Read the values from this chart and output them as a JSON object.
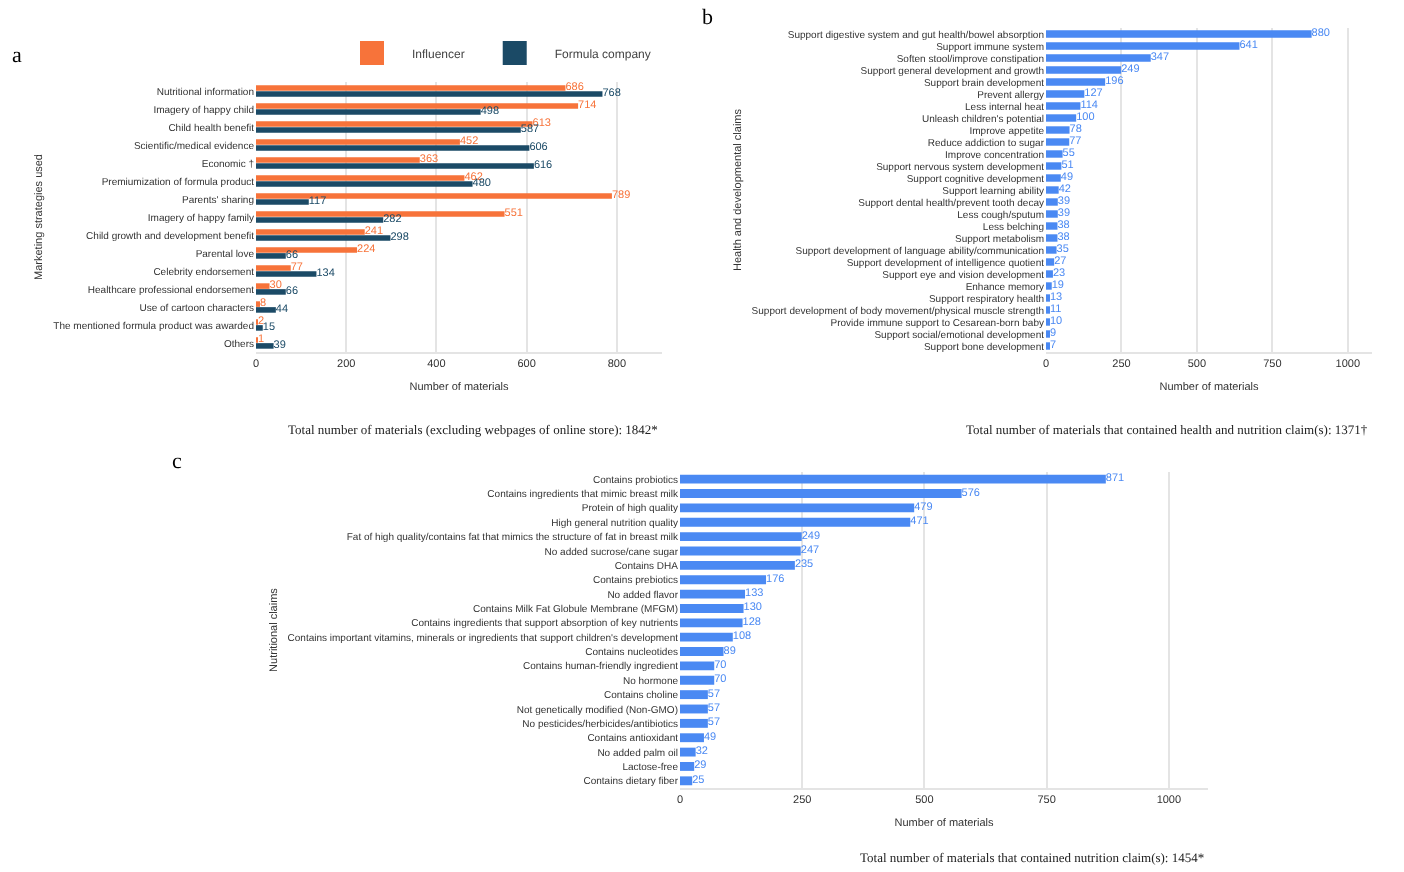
{
  "chart_data": [
    {
      "type": "bar",
      "orientation": "horizontal",
      "title": "a",
      "xlabel": "Number of materials",
      "ylabel": "Marketing strategies used",
      "legend": "top",
      "grid": "x",
      "data_labels": true,
      "categories": [
        "Nutritional information",
        "Imagery of happy child",
        "Child health benefit",
        "Scientific/medical evidence",
        "Economic †",
        "Premiumization of formula product",
        "Parents' sharing",
        "Imagery of happy family",
        "Child growth and development benefit",
        "Parental love",
        "Celebrity endorsement",
        "Healthcare professional endorsement",
        "Use of cartoon characters",
        "The mentioned formula product was awarded",
        "Others"
      ],
      "series": [
        {
          "name": "Influencer",
          "color": "#f7733a",
          "values": [
            686,
            714,
            613,
            452,
            363,
            462,
            789,
            551,
            241,
            224,
            77,
            30,
            8,
            2,
            1
          ]
        },
        {
          "name": "Formula company",
          "color": "#1b4a66",
          "values": [
            768,
            498,
            587,
            606,
            616,
            480,
            117,
            282,
            298,
            66,
            134,
            66,
            44,
            15,
            39
          ]
        }
      ],
      "xlim": [
        0,
        900
      ],
      "xticks": [
        0,
        200,
        400,
        600,
        800
      ],
      "annotations": [
        "Total number of materials (excluding webpages of online store): 1842*"
      ]
    },
    {
      "type": "bar",
      "orientation": "horizontal",
      "title": "b",
      "xlabel": "Number of materials",
      "ylabel": "Health and developmental claims",
      "grid": "x",
      "data_labels": true,
      "categories": [
        "Support digestive system and gut health/bowel absorption",
        "Support immune system",
        "Soften stool/improve constipation",
        "Support general development and growth",
        "Support brain development",
        "Prevent allergy",
        "Less internal heat",
        "Unleash children's potential",
        "Improve appetite",
        "Reduce addiction to sugar",
        "Improve concentration",
        "Support nervous system development",
        "Support cognitive development",
        "Support learning ability",
        "Support dental health/prevent tooth decay",
        "Less cough/sputum",
        "Less belching",
        "Support metabolism",
        "Support development of language ability/communication",
        "Support development of intelligence quotient",
        "Support eye and vision development",
        "Enhance memory",
        "Support respiratory health",
        "Support development of body movement/physical muscle strength",
        "Provide immune support to Cesarean-born baby",
        "Support social/emotional development",
        "Support bone development"
      ],
      "series": [
        {
          "color": "#4a89f3",
          "values": [
            880,
            641,
            347,
            249,
            196,
            127,
            114,
            100,
            78,
            77,
            55,
            51,
            49,
            42,
            39,
            39,
            38,
            38,
            35,
            27,
            23,
            19,
            13,
            11,
            10,
            9,
            7
          ]
        }
      ],
      "xlim": [
        0,
        1080
      ],
      "xticks": [
        0,
        250,
        500,
        750,
        1000
      ],
      "annotations": [
        "Total number of materials that contained health and nutrition claim(s): 1371†"
      ]
    },
    {
      "type": "bar",
      "orientation": "horizontal",
      "title": "c",
      "xlabel": "Number of materials",
      "ylabel": "Nutritional claims",
      "grid": "x",
      "data_labels": true,
      "categories": [
        "Contains probiotics",
        "Contains ingredients that mimic breast milk",
        "Protein of high quality",
        "High general nutrition quality",
        "Fat of high quality/contains fat that mimics the structure of fat in breast milk",
        "No added sucrose/cane sugar",
        "Contains DHA",
        "Contains prebiotics",
        "No added flavor",
        "Contains Milk Fat Globule Membrane (MFGM)",
        "Contains ingredients that support absorption of key nutrients",
        "Contains important vitamins, minerals or ingredients that support children's development",
        "Contains nucleotides",
        "Contains human-friendly ingredient",
        "No hormone",
        "Contains choline",
        "Not genetically modified (Non-GMO)",
        "No pesticides/herbicides/antibiotics",
        "Contains antioxidant",
        "No added palm oil",
        "Lactose-free",
        "Contains dietary fiber"
      ],
      "series": [
        {
          "color": "#4a89f3",
          "values": [
            871,
            576,
            479,
            471,
            249,
            247,
            235,
            176,
            133,
            130,
            128,
            108,
            89,
            70,
            70,
            57,
            57,
            57,
            49,
            32,
            29,
            25
          ]
        }
      ],
      "xlim": [
        0,
        1080
      ],
      "xticks": [
        0,
        250,
        500,
        750,
        1000
      ],
      "annotations": [
        "Total number of materials that contained nutrition claim(s): 1454*"
      ]
    }
  ]
}
